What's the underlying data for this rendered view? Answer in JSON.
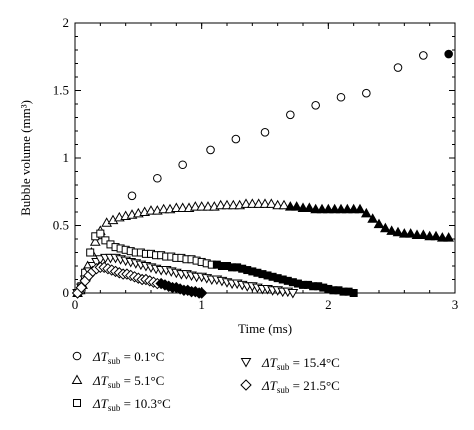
{
  "chart_data": {
    "type": "scatter",
    "xlabel": "Time (ms)",
    "ylabel": "Bubble volume (mm³)",
    "xlim": [
      0,
      3
    ],
    "ylim": [
      0,
      2
    ],
    "xticks": [
      "0",
      "1",
      "2",
      "3"
    ],
    "yticks": [
      "0",
      "0.5",
      "1",
      "1.5",
      "2"
    ],
    "grid": false,
    "legend_position": "bottom",
    "series": [
      {
        "name": "ΔTsub = 0.1°C",
        "marker": "circle",
        "legend_label": {
          "prefix": "ΔT",
          "sub": "sub",
          "suffix": " = 0.1°C"
        },
        "x": [
          0.02,
          0.05,
          0.1,
          0.2,
          0.45,
          0.65,
          0.85,
          1.07,
          1.27,
          1.5,
          1.7,
          1.9,
          2.1,
          2.3,
          2.55,
          2.75,
          2.95
        ],
        "y": [
          0.0,
          0.02,
          0.12,
          0.43,
          0.72,
          0.85,
          0.95,
          1.06,
          1.14,
          1.19,
          1.32,
          1.39,
          1.45,
          1.48,
          1.67,
          1.76,
          1.77
        ],
        "filled_last": true
      },
      {
        "name": "ΔTsub = 5.1°C",
        "marker": "triangle-up",
        "legend_label": {
          "prefix": "ΔT",
          "sub": "sub",
          "suffix": " = 5.1°C"
        },
        "x": [
          0.02,
          0.04,
          0.06,
          0.08,
          0.1,
          0.13,
          0.16,
          0.2,
          0.25,
          0.3,
          0.35,
          0.4,
          0.45,
          0.5,
          0.55,
          0.6,
          0.65,
          0.7,
          0.75,
          0.8,
          0.85,
          0.9,
          0.95,
          1.0,
          1.05,
          1.1,
          1.15,
          1.2,
          1.25,
          1.3,
          1.35,
          1.4,
          1.45,
          1.5,
          1.55,
          1.6,
          1.65,
          1.7,
          1.75,
          1.8,
          1.85,
          1.9,
          1.95,
          2.0,
          2.05,
          2.1,
          2.15,
          2.2,
          2.25,
          2.3,
          2.35,
          2.4,
          2.45,
          2.5,
          2.55,
          2.6,
          2.65,
          2.7,
          2.75,
          2.8,
          2.85,
          2.9,
          2.95
        ],
        "y": [
          0.0,
          0.02,
          0.06,
          0.12,
          0.2,
          0.3,
          0.38,
          0.46,
          0.52,
          0.54,
          0.56,
          0.57,
          0.58,
          0.59,
          0.6,
          0.61,
          0.61,
          0.62,
          0.62,
          0.63,
          0.63,
          0.63,
          0.64,
          0.64,
          0.64,
          0.64,
          0.65,
          0.65,
          0.65,
          0.65,
          0.66,
          0.66,
          0.66,
          0.66,
          0.66,
          0.65,
          0.65,
          0.64,
          0.64,
          0.63,
          0.63,
          0.62,
          0.62,
          0.62,
          0.62,
          0.62,
          0.62,
          0.62,
          0.62,
          0.59,
          0.55,
          0.51,
          0.48,
          0.46,
          0.45,
          0.44,
          0.44,
          0.43,
          0.43,
          0.42,
          0.42,
          0.41,
          0.41
        ],
        "filled_from_x": 1.7
      },
      {
        "name": "ΔTsub = 10.3°C",
        "marker": "square",
        "legend_label": {
          "prefix": "ΔT",
          "sub": "sub",
          "suffix": " = 10.3°C"
        },
        "x": [
          0.02,
          0.05,
          0.08,
          0.12,
          0.16,
          0.2,
          0.24,
          0.28,
          0.32,
          0.36,
          0.4,
          0.44,
          0.48,
          0.52,
          0.56,
          0.6,
          0.64,
          0.68,
          0.72,
          0.76,
          0.8,
          0.84,
          0.88,
          0.92,
          0.96,
          1.0,
          1.04,
          1.08,
          1.12,
          1.16,
          1.2,
          1.24,
          1.28,
          1.32,
          1.36,
          1.4,
          1.44,
          1.48,
          1.52,
          1.56,
          1.6,
          1.64,
          1.68,
          1.72,
          1.76,
          1.8,
          1.84,
          1.88,
          1.92,
          1.96,
          2.0,
          2.04,
          2.08,
          2.12,
          2.16,
          2.2
        ],
        "y": [
          0.0,
          0.05,
          0.15,
          0.3,
          0.42,
          0.44,
          0.39,
          0.36,
          0.34,
          0.33,
          0.32,
          0.31,
          0.3,
          0.3,
          0.29,
          0.29,
          0.28,
          0.28,
          0.27,
          0.27,
          0.26,
          0.26,
          0.25,
          0.25,
          0.24,
          0.23,
          0.22,
          0.21,
          0.21,
          0.2,
          0.2,
          0.19,
          0.19,
          0.18,
          0.17,
          0.16,
          0.15,
          0.14,
          0.13,
          0.12,
          0.11,
          0.1,
          0.09,
          0.08,
          0.07,
          0.06,
          0.06,
          0.05,
          0.05,
          0.04,
          0.03,
          0.02,
          0.02,
          0.01,
          0.01,
          0.0
        ],
        "filled_from_x": 1.1
      },
      {
        "name": "ΔTsub = 15.4°C",
        "marker": "triangle-down",
        "legend_label": {
          "prefix": "ΔT",
          "sub": "sub",
          "suffix": " = 15.4°C"
        },
        "x": [
          0.02,
          0.05,
          0.08,
          0.11,
          0.14,
          0.17,
          0.2,
          0.24,
          0.28,
          0.32,
          0.36,
          0.4,
          0.44,
          0.48,
          0.52,
          0.56,
          0.6,
          0.64,
          0.68,
          0.72,
          0.76,
          0.8,
          0.84,
          0.88,
          0.92,
          0.96,
          1.0,
          1.04,
          1.08,
          1.12,
          1.16,
          1.2,
          1.24,
          1.28,
          1.32,
          1.36,
          1.4,
          1.44,
          1.48,
          1.52,
          1.56,
          1.6,
          1.64,
          1.68,
          1.72
        ],
        "y": [
          0.0,
          0.04,
          0.1,
          0.16,
          0.2,
          0.23,
          0.25,
          0.26,
          0.26,
          0.26,
          0.25,
          0.24,
          0.23,
          0.22,
          0.21,
          0.2,
          0.19,
          0.18,
          0.17,
          0.17,
          0.16,
          0.15,
          0.14,
          0.14,
          0.13,
          0.12,
          0.12,
          0.11,
          0.1,
          0.1,
          0.09,
          0.08,
          0.07,
          0.07,
          0.06,
          0.05,
          0.05,
          0.04,
          0.03,
          0.03,
          0.02,
          0.02,
          0.01,
          0.01,
          0.0
        ]
      },
      {
        "name": "ΔTsub = 21.5°C",
        "marker": "diamond",
        "legend_label": {
          "prefix": "ΔT",
          "sub": "sub",
          "suffix": " = 21.5°C"
        },
        "x": [
          0.02,
          0.05,
          0.08,
          0.11,
          0.14,
          0.17,
          0.2,
          0.23,
          0.26,
          0.29,
          0.32,
          0.35,
          0.38,
          0.41,
          0.44,
          0.47,
          0.5,
          0.53,
          0.56,
          0.59,
          0.62,
          0.65,
          0.68,
          0.71,
          0.74,
          0.77,
          0.8,
          0.83,
          0.86,
          0.89,
          0.92,
          0.95,
          0.98,
          1.0
        ],
        "y": [
          0.0,
          0.04,
          0.09,
          0.13,
          0.16,
          0.18,
          0.19,
          0.19,
          0.18,
          0.17,
          0.16,
          0.15,
          0.14,
          0.14,
          0.13,
          0.12,
          0.11,
          0.1,
          0.1,
          0.09,
          0.08,
          0.07,
          0.07,
          0.06,
          0.05,
          0.04,
          0.04,
          0.03,
          0.02,
          0.02,
          0.01,
          0.01,
          0.0,
          0.0
        ],
        "filled_from_x": 0.68
      }
    ]
  }
}
